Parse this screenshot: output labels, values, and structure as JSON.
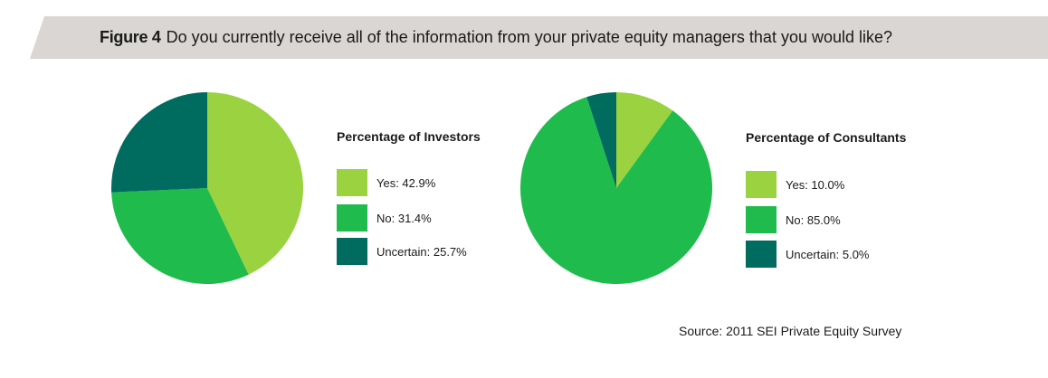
{
  "header": {
    "figure_label": "Figure 4",
    "question": "Do you currently receive all of the information from your private equity managers that you would like?"
  },
  "colors": {
    "yes": "#9ad33f",
    "no": "#1fbc4d",
    "uncertain": "#006b5f",
    "header_band": "#d9d6d3"
  },
  "chart_data": [
    {
      "type": "pie",
      "title": "Percentage of Investors",
      "categories": [
        "Yes",
        "No",
        "Uncertain"
      ],
      "values": [
        42.9,
        31.4,
        25.7
      ],
      "labels": [
        "Yes: 42.9%",
        "No: 31.4%",
        "Uncertain: 25.7%"
      ],
      "legend_position": "right"
    },
    {
      "type": "pie",
      "title": "Percentage of Consultants",
      "categories": [
        "Yes",
        "No",
        "Uncertain"
      ],
      "values": [
        10.0,
        85.0,
        5.0
      ],
      "labels": [
        "Yes: 10.0%",
        "No: 85.0%",
        "Uncertain: 5.0%"
      ],
      "legend_position": "right"
    }
  ],
  "source": "Source: 2011 SEI Private Equity Survey"
}
